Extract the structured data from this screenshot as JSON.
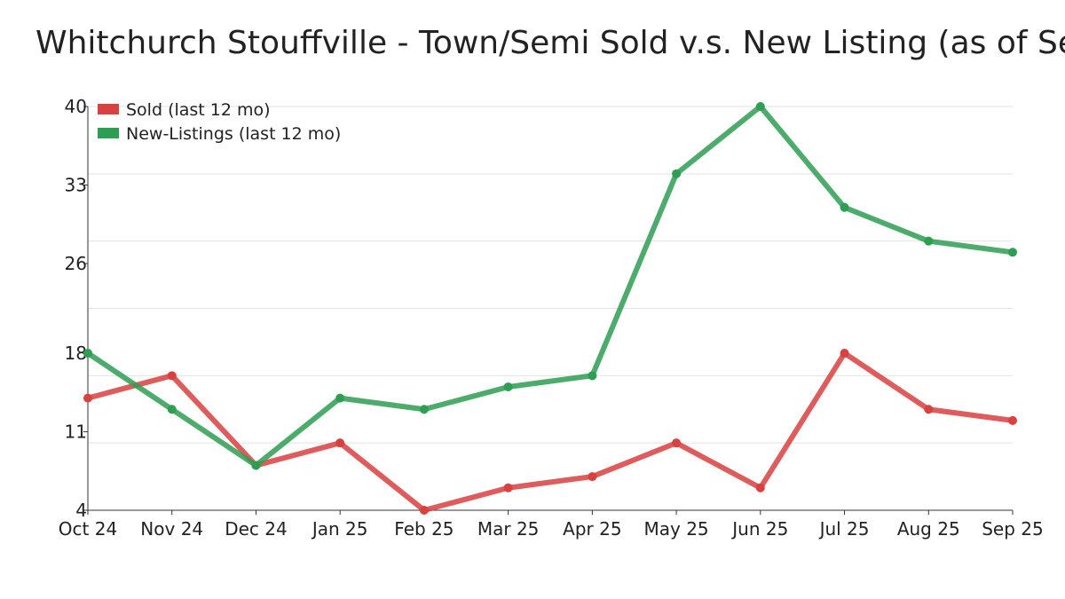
{
  "chart_data": {
    "type": "line",
    "title": "Whitchurch Stouffville - Town/Semi Sold v.s. New Listing (as of Sep",
    "xlabel": "",
    "ylabel": "",
    "categories": [
      "Oct 24",
      "Nov 24",
      "Dec 24",
      "Jan 25",
      "Feb 25",
      "Mar 25",
      "Apr 25",
      "May 25",
      "Jun 25",
      "Jul 25",
      "Aug 25",
      "Sep 25"
    ],
    "y_ticks": [
      "4",
      "11",
      "18",
      "26",
      "33",
      "40"
    ],
    "ylim": [
      4,
      40
    ],
    "grid": true,
    "legend_position": "top-left",
    "series": [
      {
        "name": "Sold (last 12 mo)",
        "color": "#d94040",
        "values": [
          14,
          16,
          8,
          10,
          4,
          6,
          7,
          10,
          6,
          18,
          13,
          12
        ]
      },
      {
        "name": "New-Listings (last 12 mo)",
        "color": "#2e9e52",
        "values": [
          18,
          13,
          8,
          14,
          13,
          15,
          16,
          34,
          40,
          31,
          28,
          27
        ]
      }
    ]
  }
}
